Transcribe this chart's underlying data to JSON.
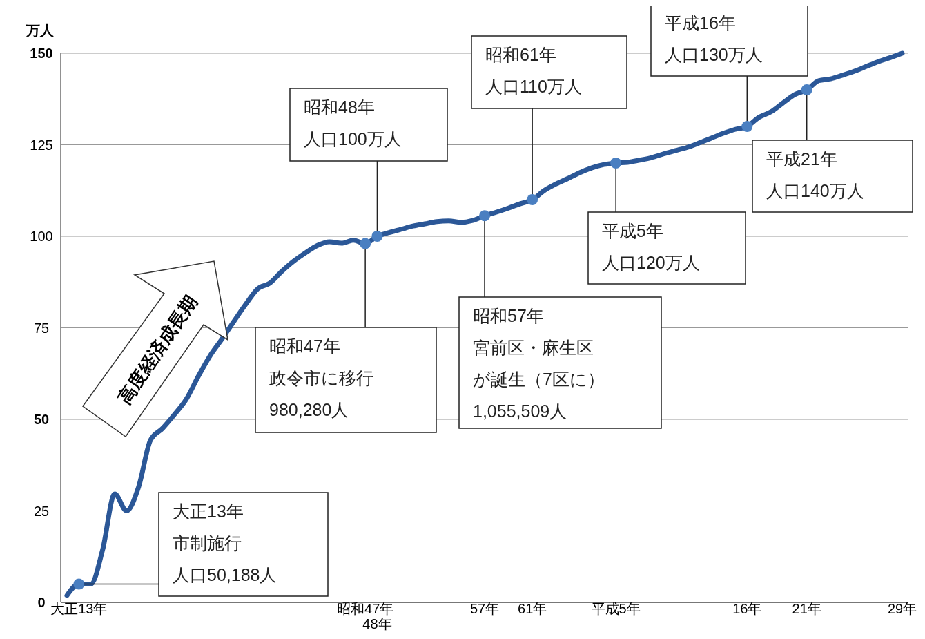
{
  "chart_data": {
    "type": "line",
    "ylabel": "万人",
    "categories": [
      null,
      "大正13年",
      null,
      null,
      null,
      null,
      null,
      null,
      null,
      null,
      null,
      null,
      null,
      null,
      null,
      null,
      null,
      null,
      null,
      null,
      null,
      null,
      null,
      null,
      null,
      "昭和47年",
      "48年",
      null,
      null,
      null,
      null,
      null,
      null,
      null,
      null,
      "57年",
      null,
      null,
      null,
      "61年",
      null,
      null,
      null,
      null,
      null,
      null,
      "平成5年",
      null,
      null,
      null,
      null,
      null,
      null,
      null,
      null,
      null,
      null,
      "16年",
      null,
      null,
      null,
      null,
      "21年",
      null,
      null,
      null,
      null,
      null,
      null,
      null,
      "29年"
    ],
    "series": [
      {
        "color": "#2b5797",
        "values": [
          1.9,
          5.0,
          5.0,
          14.5,
          29.6,
          25,
          31.5,
          44.3,
          47.5,
          51.3,
          55.5,
          61.7,
          67.4,
          72,
          76.8,
          81.5,
          85.7,
          87.2,
          90.4,
          93.2,
          95.5,
          97.5,
          98.5,
          98.1,
          98.9,
          98.0,
          100,
          101,
          101.9,
          102.8,
          103.4,
          104,
          104.2,
          103.8,
          104.3,
          105.6,
          106.6,
          107.7,
          108.9,
          110,
          112.5,
          114.3,
          115.8,
          117.4,
          118.7,
          119.6,
          120,
          120.2,
          120.8,
          121.5,
          122.5,
          123.4,
          124.3,
          125.5,
          126.8,
          128.1,
          129.2,
          130,
          132.5,
          134,
          136.4,
          138.7,
          140,
          142.5,
          143,
          144,
          145.1,
          146.4,
          147.7,
          148.8,
          150
        ]
      }
    ],
    "ylim": [
      0,
      150
    ],
    "yticks": [
      0,
      25,
      50,
      75,
      100,
      125,
      150
    ],
    "grid": "y",
    "marker": "none",
    "line_style": "solid",
    "annotations": [
      "高度経済成長期",
      {
        "text": "人口50,188人",
        "x": "大正13年",
        "y": 5.0
      },
      "大正13年",
      "市制施行",
      "昭和47年",
      "政令市に移行",
      "980,280人",
      {
        "text": "人口100万人",
        "x": "48年",
        "y": 100
      },
      "昭和48年",
      {
        "text": "昭和57年",
        "x": "57年",
        "y": 105.6
      },
      "宮前区・麻生区",
      "が誕生（7区に）",
      "1,055,509人",
      {
        "text": "人口110万人",
        "x": "61年",
        "y": 110
      },
      "昭和61年",
      {
        "text": "平成5年",
        "x": "平成5年",
        "y": 120
      },
      "人口120万人",
      {
        "text": "人口130万人",
        "x": "16年",
        "y": 130
      },
      "平成16年",
      {
        "text": "平成21年",
        "x": "21年",
        "y": 140
      },
      "人口140万人"
    ]
  }
}
